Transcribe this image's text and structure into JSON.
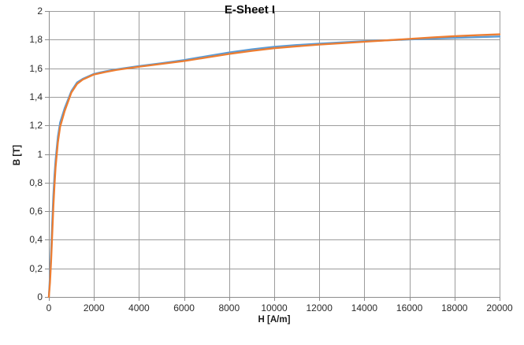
{
  "chart_data": {
    "type": "line",
    "title": "E-Sheet I",
    "xlabel": "H [A/m]",
    "ylabel": "B [T]",
    "xlim": [
      0,
      20000
    ],
    "ylim": [
      0,
      2
    ],
    "grid": true,
    "legend_position": "none",
    "markers": false,
    "x_ticks": [
      0,
      2000,
      4000,
      6000,
      8000,
      10000,
      12000,
      14000,
      16000,
      18000,
      20000
    ],
    "x_tick_labels": [
      "0",
      "2000",
      "4000",
      "6000",
      "8000",
      "10000",
      "12000",
      "14000",
      "16000",
      "18000",
      "20000"
    ],
    "y_ticks": [
      0,
      0.2,
      0.4,
      0.6,
      0.8,
      1,
      1.2,
      1.4,
      1.6,
      1.8,
      2
    ],
    "y_tick_labels": [
      "0",
      "0,2",
      "0,4",
      "0,6",
      "0,8",
      "1",
      "1,2",
      "1,4",
      "1,6",
      "1,8",
      "2"
    ],
    "colors": {
      "series_blue": "#5B9BD5",
      "series_orange": "#ED7D31",
      "gridline": "#9C9C9C",
      "axis": "#8C8C8C",
      "text": "#2b2b2b"
    },
    "x": [
      0,
      50,
      100,
      150,
      200,
      250,
      300,
      400,
      500,
      700,
      1000,
      1250,
      1500,
      2000,
      2500,
      3000,
      4000,
      5000,
      6000,
      7000,
      8000,
      9000,
      10000,
      11000,
      12000,
      13000,
      14000,
      15000,
      16000,
      17000,
      18000,
      19000,
      20000
    ],
    "series": [
      {
        "id": "blue",
        "color": "#5B9BD5",
        "values": [
          0,
          0.15,
          0.32,
          0.52,
          0.71,
          0.85,
          0.96,
          1.12,
          1.22,
          1.32,
          1.44,
          1.5,
          1.525,
          1.56,
          1.578,
          1.592,
          1.615,
          1.635,
          1.657,
          1.684,
          1.71,
          1.732,
          1.75,
          1.762,
          1.772,
          1.781,
          1.789,
          1.795,
          1.801,
          1.807,
          1.812,
          1.817,
          1.822
        ]
      },
      {
        "id": "orange",
        "color": "#ED7D31",
        "values": [
          0,
          0.1,
          0.25,
          0.44,
          0.63,
          0.78,
          0.91,
          1.08,
          1.19,
          1.3,
          1.43,
          1.49,
          1.52,
          1.556,
          1.573,
          1.588,
          1.61,
          1.63,
          1.65,
          1.675,
          1.7,
          1.721,
          1.74,
          1.753,
          1.765,
          1.775,
          1.785,
          1.795,
          1.805,
          1.815,
          1.824,
          1.831,
          1.837
        ]
      }
    ]
  }
}
